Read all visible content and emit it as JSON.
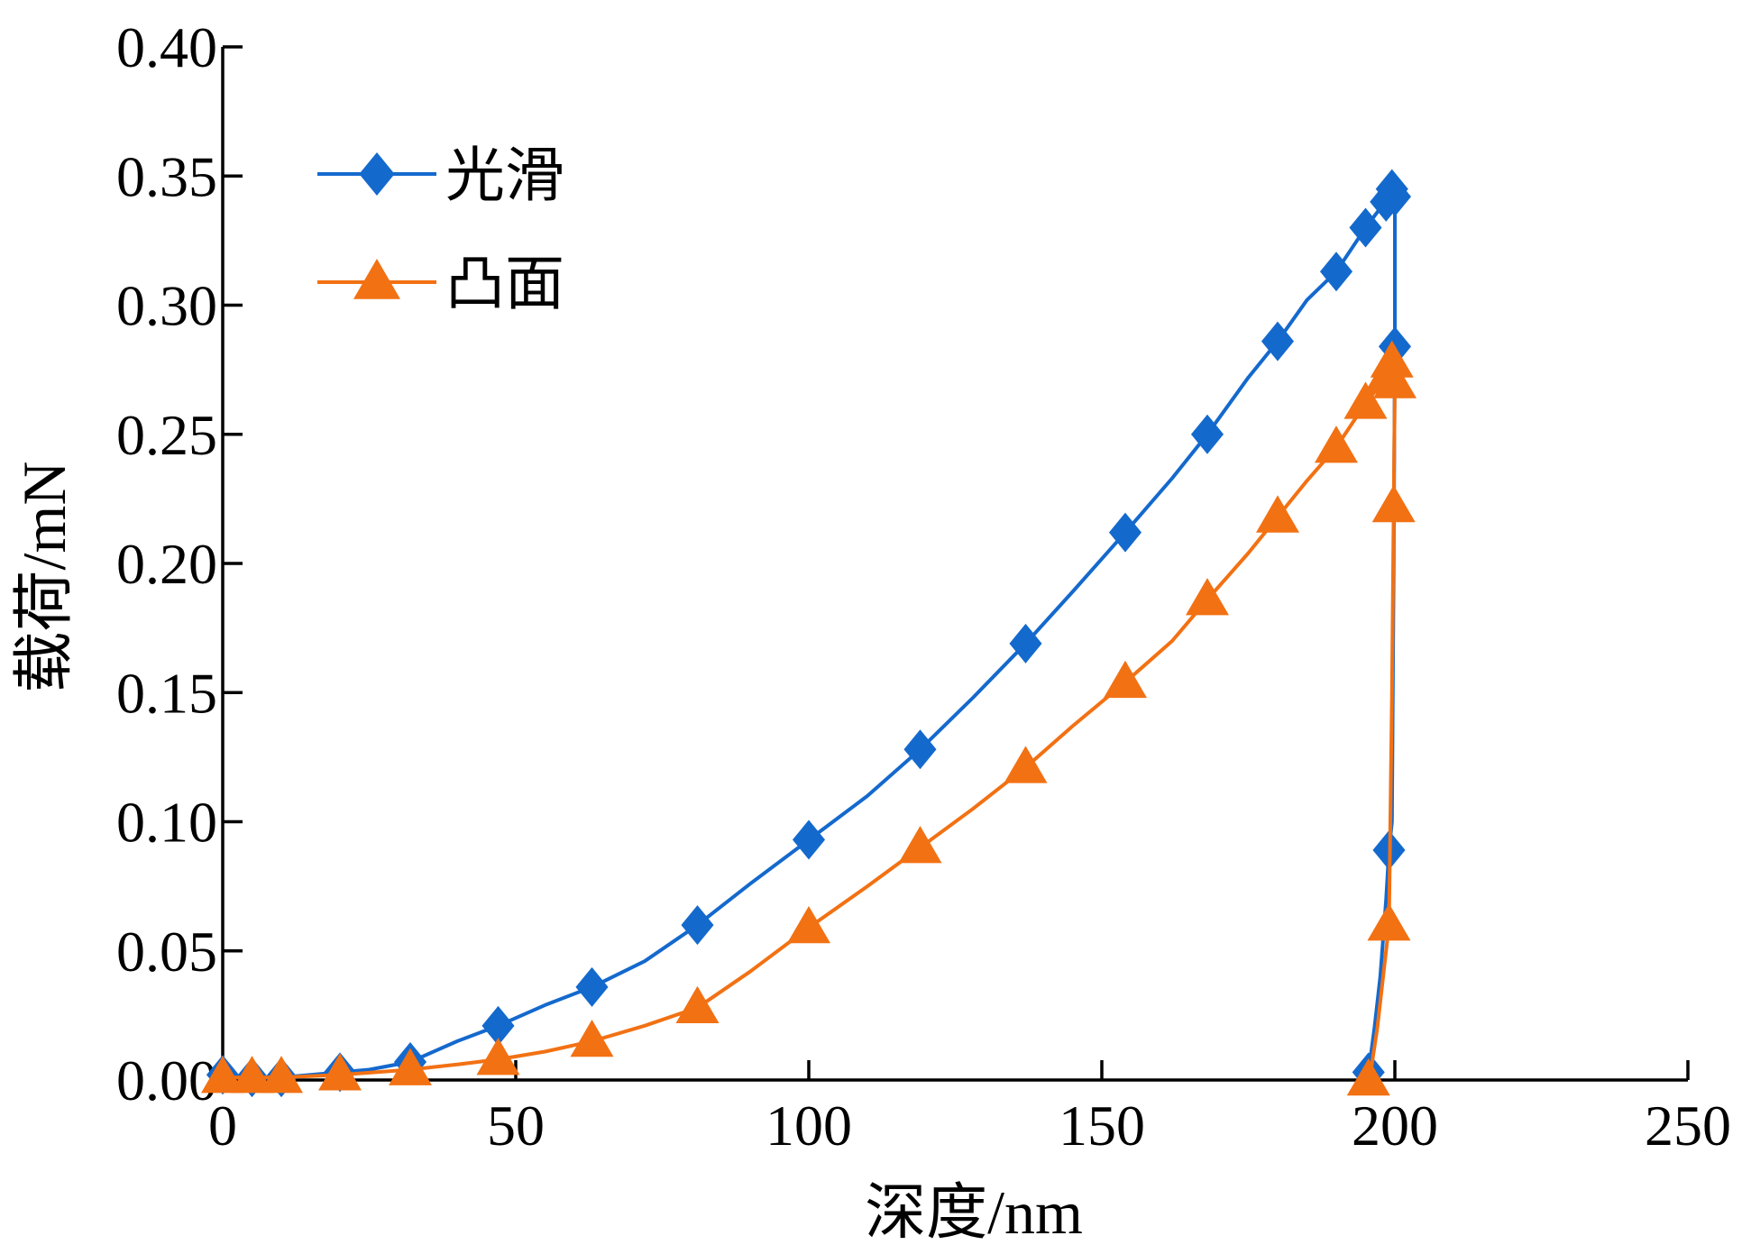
{
  "chart_data": {
    "type": "line",
    "xlabel": "深度/nm",
    "ylabel": "载荷/mN",
    "xlim": [
      0,
      250
    ],
    "ylim": [
      0,
      0.4
    ],
    "xticks": [
      "0",
      "50",
      "100",
      "150",
      "200",
      "250"
    ],
    "yticks": [
      "0.00",
      "0.05",
      "0.10",
      "0.15",
      "0.20",
      "0.25",
      "0.30",
      "0.35",
      "0.40"
    ],
    "grid": false,
    "legend_position": "top-left",
    "series": [
      {
        "name": "光滑",
        "color": "#1469CD",
        "marker": "diamond",
        "line_points": [
          [
            0,
            0.002
          ],
          [
            5,
            0.001
          ],
          [
            10,
            0.001
          ],
          [
            15,
            0.002
          ],
          [
            20,
            0.003
          ],
          [
            25,
            0.004
          ],
          [
            32,
            0.007
          ],
          [
            40,
            0.015
          ],
          [
            47,
            0.021
          ],
          [
            55,
            0.029
          ],
          [
            63,
            0.036
          ],
          [
            72,
            0.046
          ],
          [
            81,
            0.06
          ],
          [
            90,
            0.076
          ],
          [
            100,
            0.093
          ],
          [
            110,
            0.11
          ],
          [
            119,
            0.128
          ],
          [
            128,
            0.148
          ],
          [
            137,
            0.169
          ],
          [
            145,
            0.189
          ],
          [
            154,
            0.212
          ],
          [
            162,
            0.233
          ],
          [
            168,
            0.25
          ],
          [
            175,
            0.272
          ],
          [
            180,
            0.286
          ],
          [
            185,
            0.302
          ],
          [
            190,
            0.313
          ],
          [
            195,
            0.33
          ],
          [
            198,
            0.339
          ],
          [
            199.5,
            0.345
          ],
          [
            200,
            0.342
          ],
          [
            200,
            0.3
          ],
          [
            200,
            0.284
          ],
          [
            199.8,
            0.2
          ],
          [
            199.5,
            0.1
          ],
          [
            199,
            0.089
          ],
          [
            198.5,
            0.07
          ],
          [
            197.5,
            0.04
          ],
          [
            196.5,
            0.02
          ],
          [
            195.5,
            0.003
          ]
        ],
        "marker_points": [
          [
            0,
            0.002
          ],
          [
            5,
            0.001
          ],
          [
            10,
            0.001
          ],
          [
            20,
            0.003
          ],
          [
            32,
            0.007
          ],
          [
            47,
            0.021
          ],
          [
            63,
            0.036
          ],
          [
            81,
            0.06
          ],
          [
            100,
            0.093
          ],
          [
            119,
            0.128
          ],
          [
            137,
            0.169
          ],
          [
            154,
            0.212
          ],
          [
            168,
            0.25
          ],
          [
            180,
            0.286
          ],
          [
            190,
            0.313
          ],
          [
            195,
            0.33
          ],
          [
            198.5,
            0.34
          ],
          [
            199.5,
            0.345
          ],
          [
            200,
            0.342
          ],
          [
            200,
            0.284
          ],
          [
            199,
            0.089
          ],
          [
            195.5,
            0.003
          ]
        ]
      },
      {
        "name": "凸面",
        "color": "#F27113",
        "marker": "triangle",
        "line_points": [
          [
            0,
            0.001
          ],
          [
            5,
            0.001
          ],
          [
            10,
            0.001
          ],
          [
            20,
            0.002
          ],
          [
            32,
            0.004
          ],
          [
            40,
            0.006
          ],
          [
            47,
            0.008
          ],
          [
            55,
            0.011
          ],
          [
            63,
            0.015
          ],
          [
            72,
            0.021
          ],
          [
            81,
            0.028
          ],
          [
            90,
            0.042
          ],
          [
            100,
            0.059
          ],
          [
            110,
            0.075
          ],
          [
            119,
            0.09
          ],
          [
            128,
            0.105
          ],
          [
            137,
            0.121
          ],
          [
            145,
            0.137
          ],
          [
            154,
            0.154
          ],
          [
            162,
            0.17
          ],
          [
            168,
            0.186
          ],
          [
            175,
            0.204
          ],
          [
            180,
            0.218
          ],
          [
            185,
            0.232
          ],
          [
            190,
            0.245
          ],
          [
            195,
            0.262
          ],
          [
            198.5,
            0.272
          ],
          [
            199.5,
            0.278
          ],
          [
            200,
            0.275
          ],
          [
            200,
            0.27
          ],
          [
            199.8,
            0.222
          ],
          [
            199.5,
            0.15
          ],
          [
            199,
            0.06
          ],
          [
            198,
            0.04
          ],
          [
            197,
            0.02
          ],
          [
            196,
            0.005
          ],
          [
            195.5,
            0.0
          ]
        ],
        "marker_points": [
          [
            0,
            0.001
          ],
          [
            5,
            0.001
          ],
          [
            10,
            0.001
          ],
          [
            20,
            0.002
          ],
          [
            32,
            0.004
          ],
          [
            47,
            0.008
          ],
          [
            63,
            0.015
          ],
          [
            81,
            0.028
          ],
          [
            100,
            0.059
          ],
          [
            119,
            0.09
          ],
          [
            137,
            0.121
          ],
          [
            154,
            0.154
          ],
          [
            168,
            0.186
          ],
          [
            180,
            0.218
          ],
          [
            190,
            0.245
          ],
          [
            195,
            0.262
          ],
          [
            198.5,
            0.272
          ],
          [
            199.5,
            0.278
          ],
          [
            200,
            0.27
          ],
          [
            199.8,
            0.222
          ],
          [
            199,
            0.06
          ],
          [
            195.5,
            0.0
          ]
        ]
      }
    ]
  }
}
